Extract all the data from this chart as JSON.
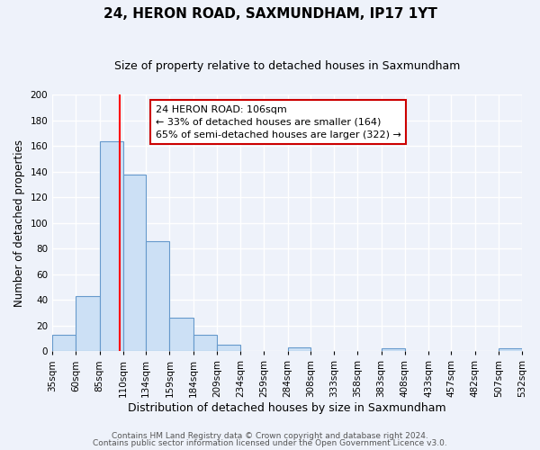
{
  "title": "24, HERON ROAD, SAXMUNDHAM, IP17 1YT",
  "subtitle": "Size of property relative to detached houses in Saxmundham",
  "xlabel": "Distribution of detached houses by size in Saxmundham",
  "ylabel": "Number of detached properties",
  "bin_edges": [
    35,
    60,
    85,
    110,
    134,
    159,
    184,
    209,
    234,
    259,
    284,
    308,
    333,
    358,
    383,
    408,
    433,
    457,
    482,
    507,
    532
  ],
  "bin_labels": [
    "35sqm",
    "60sqm",
    "85sqm",
    "110sqm",
    "134sqm",
    "159sqm",
    "184sqm",
    "209sqm",
    "234sqm",
    "259sqm",
    "284sqm",
    "308sqm",
    "333sqm",
    "358sqm",
    "383sqm",
    "408sqm",
    "433sqm",
    "457sqm",
    "482sqm",
    "507sqm",
    "532sqm"
  ],
  "bins_with_values": [
    [
      35,
      60,
      13
    ],
    [
      60,
      85,
      43
    ],
    [
      85,
      110,
      164
    ],
    [
      110,
      134,
      138
    ],
    [
      134,
      159,
      86
    ],
    [
      159,
      184,
      26
    ],
    [
      184,
      209,
      13
    ],
    [
      209,
      234,
      5
    ],
    [
      284,
      308,
      3
    ],
    [
      383,
      408,
      2
    ],
    [
      507,
      532,
      2
    ]
  ],
  "bar_color": "#cce0f5",
  "bar_edge_color": "#6699cc",
  "red_line_x": 106,
  "annotation_line1": "24 HERON ROAD: 106sqm",
  "annotation_line2": "← 33% of detached houses are smaller (164)",
  "annotation_line3": "65% of semi-detached houses are larger (322) →",
  "annotation_box_color": "#ffffff",
  "annotation_box_edge": "#cc0000",
  "ylim": [
    0,
    200
  ],
  "yticks": [
    0,
    20,
    40,
    60,
    80,
    100,
    120,
    140,
    160,
    180,
    200
  ],
  "footer1": "Contains HM Land Registry data © Crown copyright and database right 2024.",
  "footer2": "Contains public sector information licensed under the Open Government Licence v3.0.",
  "background_color": "#eef2fa",
  "grid_color": "#ffffff",
  "title_fontsize": 11,
  "subtitle_fontsize": 9,
  "ylabel_fontsize": 8.5,
  "xlabel_fontsize": 9,
  "tick_fontsize": 7.5,
  "footer_fontsize": 6.5
}
